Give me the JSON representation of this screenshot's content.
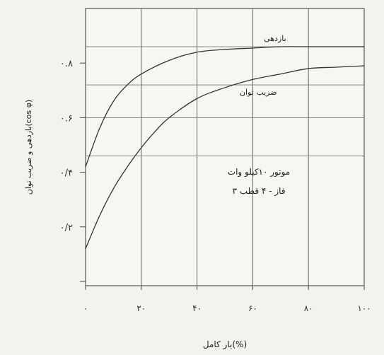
{
  "chart_data": {
    "type": "line",
    "title": "",
    "xlabel": "بار کامل(%)",
    "ylabel": "بازدهی و ضریب توان(cos φ)",
    "xlim": [
      0,
      100
    ],
    "ylim": [
      0,
      1.0
    ],
    "x_ticks": [
      {
        "value": 0,
        "label": "۰"
      },
      {
        "value": 20,
        "label": "۲۰"
      },
      {
        "value": 40,
        "label": "۴۰"
      },
      {
        "value": 60,
        "label": "۶۰"
      },
      {
        "value": 80,
        "label": "۸۰"
      },
      {
        "value": 100,
        "label": "۱۰۰"
      }
    ],
    "y_ticks": [
      {
        "value": 0.2,
        "label": "۰/۲"
      },
      {
        "value": 0.4,
        "label": "۰/۴"
      },
      {
        "value": 0.6,
        "label": "۰.۶"
      },
      {
        "value": 0.8,
        "label": "۰.۸"
      }
    ],
    "grid": true,
    "series": [
      {
        "name": "بازدهی",
        "x": [
          0,
          5,
          10,
          15,
          20,
          30,
          40,
          50,
          60,
          70,
          80,
          90,
          100
        ],
        "y": [
          0.42,
          0.56,
          0.66,
          0.72,
          0.76,
          0.81,
          0.84,
          0.85,
          0.855,
          0.86,
          0.86,
          0.86,
          0.86
        ]
      },
      {
        "name": "ضریب توان",
        "x": [
          0,
          5,
          10,
          15,
          20,
          25,
          30,
          40,
          50,
          60,
          70,
          80,
          90,
          100
        ],
        "y": [
          0.12,
          0.24,
          0.34,
          0.42,
          0.49,
          0.55,
          0.6,
          0.67,
          0.71,
          0.74,
          0.76,
          0.78,
          0.785,
          0.79
        ]
      }
    ],
    "annotations": [
      "موتور ۱۰کیلو وات",
      "۳ فاز - ۴ قطب"
    ]
  }
}
